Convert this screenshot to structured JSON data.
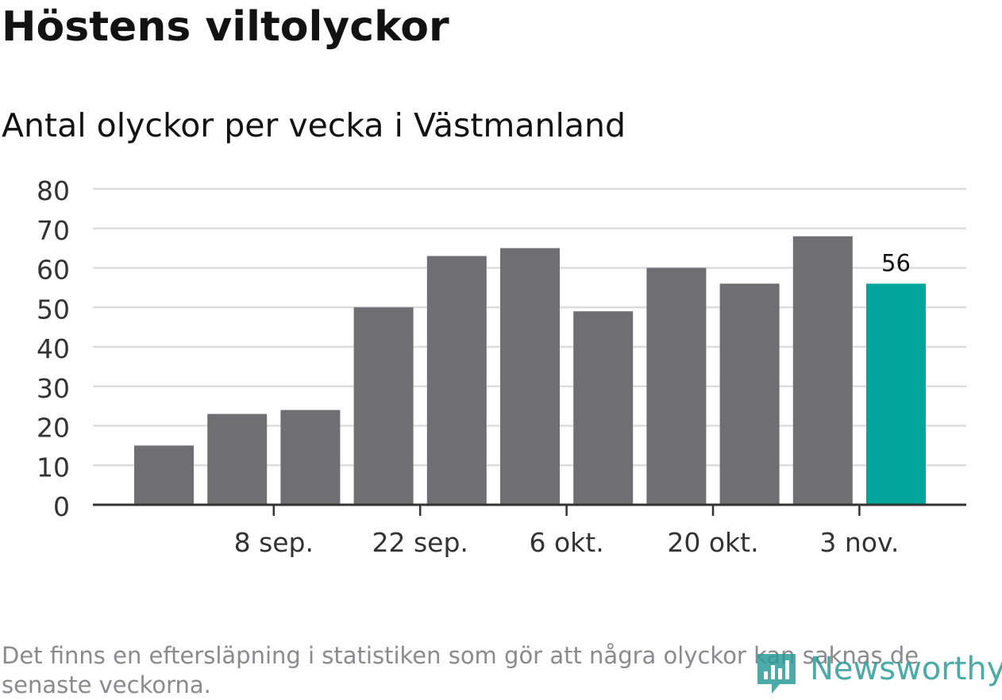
{
  "title": "Höstens viltolyckor",
  "subtitle": "Antal olyckor per vecka i Västmanland",
  "footnote": "Det finns en eftersläpning i statistiken som gör att några olyckor kan saknas de senaste veckorna.",
  "logo": {
    "text": "Newsworthy",
    "icon": "newsworthy-logo-icon",
    "color": "#2d9c98"
  },
  "colors": {
    "bar": "#6f6e73",
    "highlight": "#00a59b",
    "grid": "#dddddd",
    "axis": "#333333",
    "text": "#333333"
  },
  "chart_data": {
    "type": "bar",
    "title": "Höstens viltolyckor",
    "subtitle": "Antal olyckor per vecka i Västmanland",
    "xlabel": "",
    "ylabel": "",
    "ylim": [
      0,
      80
    ],
    "yticks": [
      0,
      10,
      20,
      30,
      40,
      50,
      60,
      70,
      80
    ],
    "grid": true,
    "legend": "none",
    "values": [
      15,
      23,
      24,
      50,
      63,
      65,
      49,
      60,
      56,
      68,
      56
    ],
    "highlight_index": 10,
    "data_labels": [
      {
        "index": 10,
        "text": "56"
      }
    ],
    "x_tick_labels": [
      {
        "after_bar": 1,
        "label": "8 sep."
      },
      {
        "after_bar": 3,
        "label": "22 sep."
      },
      {
        "after_bar": 5,
        "label": "6 okt."
      },
      {
        "after_bar": 7,
        "label": "20 okt."
      },
      {
        "after_bar": 9,
        "label": "3 nov."
      }
    ]
  }
}
